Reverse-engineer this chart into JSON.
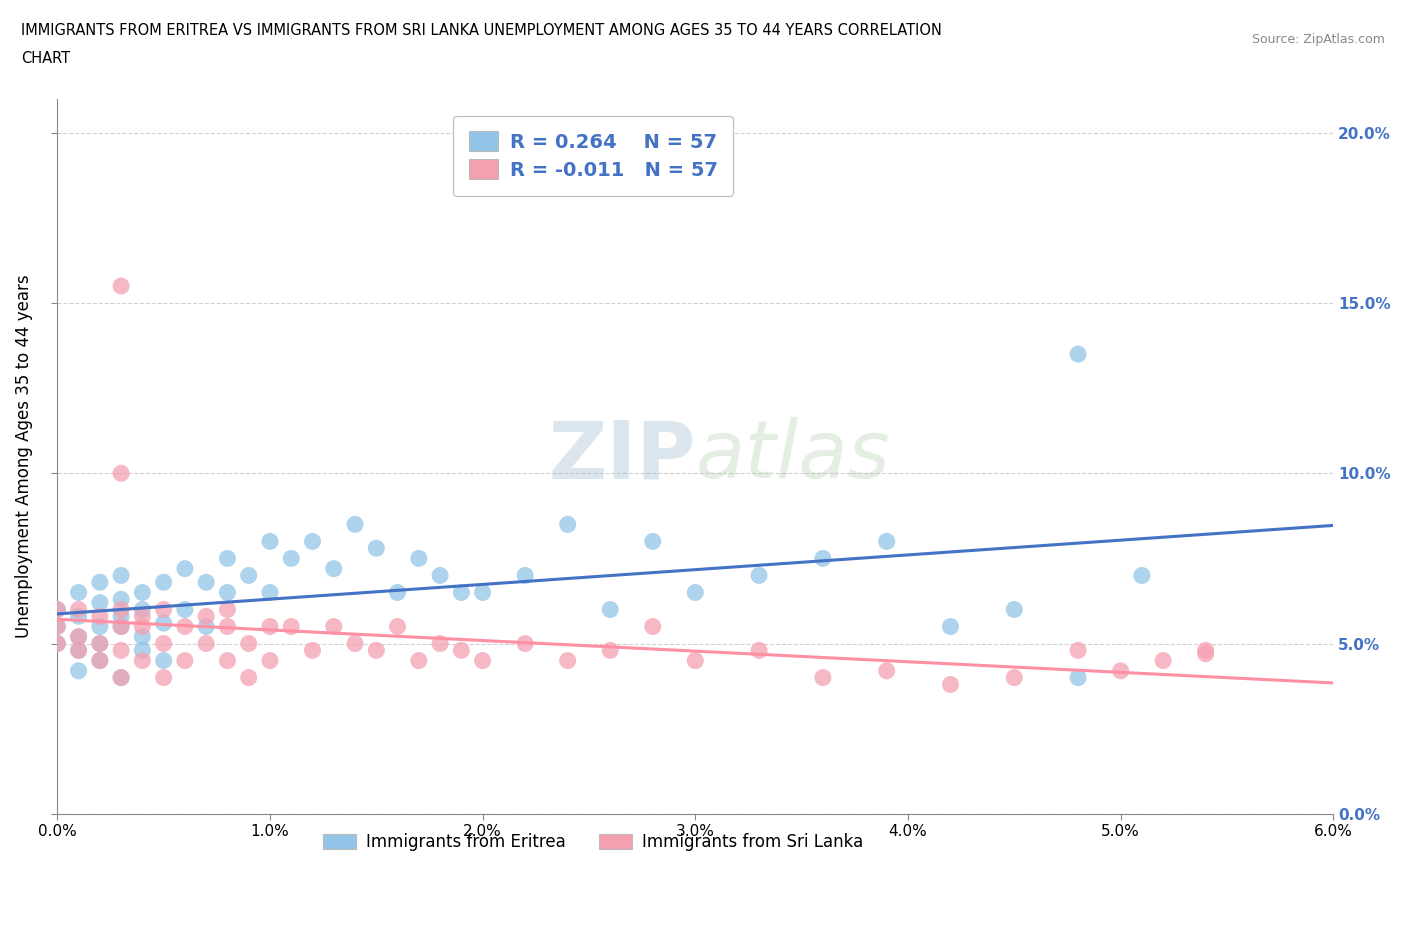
{
  "title_line1": "IMMIGRANTS FROM ERITREA VS IMMIGRANTS FROM SRI LANKA UNEMPLOYMENT AMONG AGES 35 TO 44 YEARS CORRELATION",
  "title_line2": "CHART",
  "source_text": "Source: ZipAtlas.com",
  "ylabel": "Unemployment Among Ages 35 to 44 years",
  "xlim": [
    0.0,
    0.06
  ],
  "ylim": [
    0.0,
    0.21
  ],
  "xtick_vals": [
    0.0,
    0.01,
    0.02,
    0.03,
    0.04,
    0.05,
    0.06
  ],
  "ytick_vals": [
    0.0,
    0.05,
    0.1,
    0.15,
    0.2
  ],
  "color_eritrea": "#92C5E8",
  "color_srilanka": "#F4A0B0",
  "color_eritrea_line": "#4472C4",
  "color_srilanka_line": "#FF8FA3",
  "legend_text_color": "#4472C4",
  "watermark_zip": "ZIP",
  "watermark_atlas": "atlas",
  "background_color": "#FFFFFF",
  "grid_color": "#CCCCCC",
  "eritrea_x": [
    0.0,
    0.0,
    0.0,
    0.001,
    0.001,
    0.001,
    0.001,
    0.001,
    0.002,
    0.002,
    0.002,
    0.002,
    0.002,
    0.003,
    0.003,
    0.003,
    0.003,
    0.003,
    0.004,
    0.004,
    0.004,
    0.004,
    0.005,
    0.005,
    0.005,
    0.006,
    0.006,
    0.007,
    0.007,
    0.008,
    0.008,
    0.009,
    0.01,
    0.01,
    0.011,
    0.012,
    0.013,
    0.014,
    0.015,
    0.016,
    0.017,
    0.018,
    0.019,
    0.02,
    0.022,
    0.024,
    0.026,
    0.028,
    0.03,
    0.033,
    0.036,
    0.039,
    0.042,
    0.045,
    0.048,
    0.048,
    0.051
  ],
  "eritrea_y": [
    0.05,
    0.055,
    0.06,
    0.052,
    0.048,
    0.058,
    0.065,
    0.042,
    0.045,
    0.062,
    0.05,
    0.055,
    0.068,
    0.058,
    0.063,
    0.04,
    0.055,
    0.07,
    0.048,
    0.06,
    0.065,
    0.052,
    0.056,
    0.068,
    0.045,
    0.06,
    0.072,
    0.055,
    0.068,
    0.065,
    0.075,
    0.07,
    0.08,
    0.065,
    0.075,
    0.08,
    0.072,
    0.085,
    0.078,
    0.065,
    0.075,
    0.07,
    0.065,
    0.065,
    0.07,
    0.085,
    0.06,
    0.08,
    0.065,
    0.07,
    0.075,
    0.08,
    0.055,
    0.06,
    0.04,
    0.135,
    0.07
  ],
  "srilanka_x": [
    0.0,
    0.0,
    0.0,
    0.001,
    0.001,
    0.001,
    0.002,
    0.002,
    0.002,
    0.003,
    0.003,
    0.003,
    0.003,
    0.004,
    0.004,
    0.004,
    0.005,
    0.005,
    0.005,
    0.006,
    0.006,
    0.007,
    0.007,
    0.008,
    0.008,
    0.008,
    0.009,
    0.009,
    0.01,
    0.01,
    0.011,
    0.012,
    0.013,
    0.014,
    0.015,
    0.016,
    0.017,
    0.018,
    0.019,
    0.02,
    0.022,
    0.024,
    0.026,
    0.028,
    0.03,
    0.033,
    0.036,
    0.039,
    0.042,
    0.045,
    0.048,
    0.05,
    0.052,
    0.054,
    0.003,
    0.003,
    0.054
  ],
  "srilanka_y": [
    0.06,
    0.055,
    0.05,
    0.048,
    0.052,
    0.06,
    0.045,
    0.058,
    0.05,
    0.055,
    0.048,
    0.06,
    0.1,
    0.058,
    0.045,
    0.055,
    0.05,
    0.06,
    0.04,
    0.055,
    0.045,
    0.058,
    0.05,
    0.055,
    0.045,
    0.06,
    0.05,
    0.04,
    0.055,
    0.045,
    0.055,
    0.048,
    0.055,
    0.05,
    0.048,
    0.055,
    0.045,
    0.05,
    0.048,
    0.045,
    0.05,
    0.045,
    0.048,
    0.055,
    0.045,
    0.048,
    0.04,
    0.042,
    0.038,
    0.04,
    0.048,
    0.042,
    0.045,
    0.047,
    0.155,
    0.04,
    0.048
  ]
}
